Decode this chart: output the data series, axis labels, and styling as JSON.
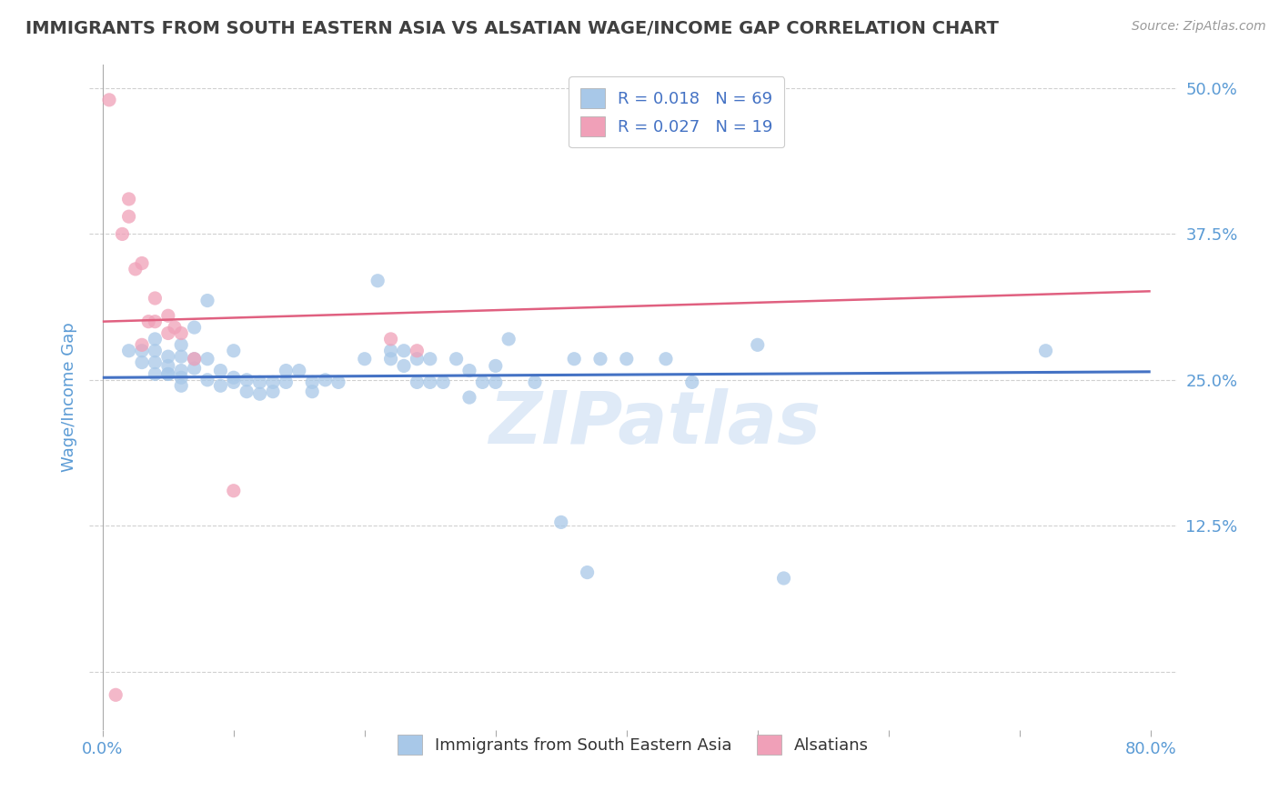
{
  "title": "IMMIGRANTS FROM SOUTH EASTERN ASIA VS ALSATIAN WAGE/INCOME GAP CORRELATION CHART",
  "source": "Source: ZipAtlas.com",
  "xlabel": "",
  "ylabel": "Wage/Income Gap",
  "xlim": [
    -0.01,
    0.82
  ],
  "ylim": [
    -0.05,
    0.52
  ],
  "xticks": [
    0.0,
    0.1,
    0.2,
    0.3,
    0.4,
    0.5,
    0.6,
    0.7,
    0.8
  ],
  "xticklabels": [
    "0.0%",
    "",
    "",
    "",
    "",
    "",
    "",
    "",
    "80.0%"
  ],
  "ytick_positions": [
    0.125,
    0.25,
    0.375,
    0.5
  ],
  "yticklabels": [
    "12.5%",
    "25.0%",
    "37.5%",
    "50.0%"
  ],
  "grid_lines": [
    0.0,
    0.125,
    0.25,
    0.375,
    0.5
  ],
  "grid_color": "#d0d0d0",
  "background_color": "#ffffff",
  "blue_color": "#a8c8e8",
  "pink_color": "#f0a0b8",
  "legend_R_blue": "R = 0.018",
  "legend_N_blue": "N = 69",
  "legend_R_pink": "R = 0.027",
  "legend_N_pink": "N = 19",
  "blue_scatter_x": [
    0.02,
    0.03,
    0.03,
    0.04,
    0.04,
    0.04,
    0.04,
    0.05,
    0.05,
    0.05,
    0.05,
    0.06,
    0.06,
    0.06,
    0.06,
    0.06,
    0.07,
    0.07,
    0.07,
    0.08,
    0.08,
    0.08,
    0.09,
    0.09,
    0.1,
    0.1,
    0.1,
    0.11,
    0.11,
    0.12,
    0.12,
    0.13,
    0.13,
    0.14,
    0.14,
    0.15,
    0.16,
    0.16,
    0.17,
    0.18,
    0.2,
    0.21,
    0.22,
    0.22,
    0.23,
    0.23,
    0.24,
    0.24,
    0.25,
    0.25,
    0.26,
    0.27,
    0.28,
    0.28,
    0.29,
    0.3,
    0.3,
    0.31,
    0.33,
    0.35,
    0.36,
    0.37,
    0.38,
    0.4,
    0.43,
    0.45,
    0.5,
    0.52,
    0.72
  ],
  "blue_scatter_y": [
    0.275,
    0.265,
    0.275,
    0.255,
    0.265,
    0.275,
    0.285,
    0.255,
    0.255,
    0.262,
    0.27,
    0.245,
    0.252,
    0.258,
    0.27,
    0.28,
    0.26,
    0.268,
    0.295,
    0.25,
    0.268,
    0.318,
    0.245,
    0.258,
    0.248,
    0.252,
    0.275,
    0.24,
    0.25,
    0.238,
    0.248,
    0.24,
    0.248,
    0.248,
    0.258,
    0.258,
    0.24,
    0.248,
    0.25,
    0.248,
    0.268,
    0.335,
    0.268,
    0.275,
    0.262,
    0.275,
    0.248,
    0.268,
    0.248,
    0.268,
    0.248,
    0.268,
    0.235,
    0.258,
    0.248,
    0.248,
    0.262,
    0.285,
    0.248,
    0.128,
    0.268,
    0.085,
    0.268,
    0.268,
    0.268,
    0.248,
    0.28,
    0.08,
    0.275
  ],
  "pink_scatter_x": [
    0.005,
    0.01,
    0.015,
    0.02,
    0.02,
    0.025,
    0.03,
    0.03,
    0.035,
    0.04,
    0.04,
    0.05,
    0.05,
    0.055,
    0.06,
    0.07,
    0.1,
    0.22,
    0.24
  ],
  "pink_scatter_y": [
    0.49,
    -0.02,
    0.375,
    0.39,
    0.405,
    0.345,
    0.35,
    0.28,
    0.3,
    0.3,
    0.32,
    0.305,
    0.29,
    0.295,
    0.29,
    0.268,
    0.155,
    0.285,
    0.275
  ],
  "blue_trend_x": [
    0.0,
    0.8
  ],
  "blue_trend_y": [
    0.252,
    0.257
  ],
  "pink_trend_x": [
    0.0,
    0.8
  ],
  "pink_trend_y": [
    0.3,
    0.326
  ],
  "watermark": "ZIPatlas",
  "title_color": "#404040",
  "axis_label_color": "#5b9bd5",
  "tick_label_color": "#5b9bd5",
  "blue_line_color": "#4472c4",
  "pink_line_color": "#e06080"
}
